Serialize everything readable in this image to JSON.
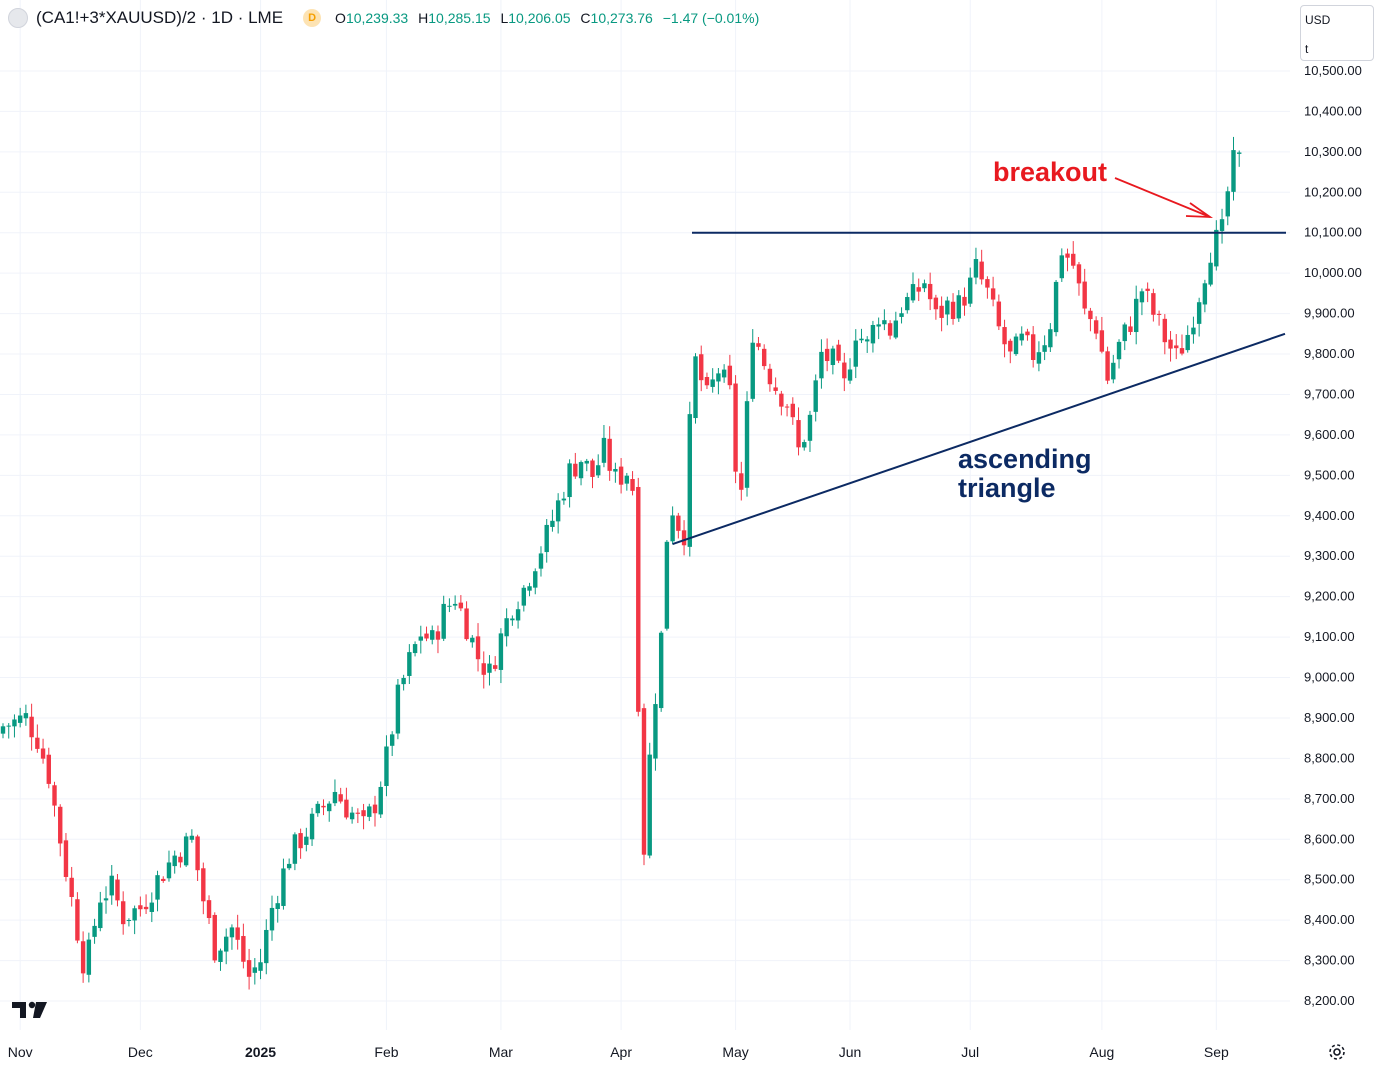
{
  "header": {
    "symbol": "(CA1!+3*XAUUSD)/2 · 1D · LME",
    "badge": "D",
    "open_label": "O",
    "open": "10,239.33",
    "high_label": "H",
    "high": "10,285.15",
    "low_label": "L",
    "low": "10,206.05",
    "close_label": "C",
    "close": "10,273.76",
    "change": "−1.47 (−0.01%)"
  },
  "currency": {
    "unit": "USD",
    "sub": "t"
  },
  "colors": {
    "up": "#089981",
    "down": "#f23645",
    "line": "#0c2a63",
    "annotation_red": "#e8191f",
    "annotation_navy": "#0c2a63",
    "grid": "#f0f3fa"
  },
  "icons": {
    "logo": "tradingview-logo-icon",
    "settings": "gear-icon"
  },
  "chart_data": {
    "type": "candlestick",
    "title": "(CA1!+3*XAUUSD)/2 · 1D · LME",
    "y_unit": "USD/t",
    "ylim": [
      8150,
      10560
    ],
    "y_ticks": [
      8200,
      8300,
      8400,
      8500,
      8600,
      8700,
      8800,
      8900,
      9000,
      9100,
      9200,
      9300,
      9400,
      9500,
      9600,
      9700,
      9800,
      9900,
      10000,
      10100,
      10200,
      10300,
      10400,
      10500
    ],
    "y_tick_labels": [
      "8,200.00",
      "8,300.00",
      "8,400.00",
      "8,500.00",
      "8,600.00",
      "8,700.00",
      "8,800.00",
      "8,900.00",
      "9,000.00",
      "9,100.00",
      "9,200.00",
      "9,300.00",
      "9,400.00",
      "9,500.00",
      "9,600.00",
      "9,700.00",
      "9,800.00",
      "9,900.00",
      "10,000.00",
      "10,100.00",
      "10,200.00",
      "10,300.00",
      "10,400.00",
      "10,500.00"
    ],
    "x_range": [
      0,
      224
    ],
    "x_ticks": [
      {
        "label": "Nov",
        "index": 3,
        "bold": false
      },
      {
        "label": "Dec",
        "index": 24,
        "bold": false
      },
      {
        "label": "2025",
        "index": 45,
        "bold": true
      },
      {
        "label": "Feb",
        "index": 67,
        "bold": false
      },
      {
        "label": "Mar",
        "index": 87,
        "bold": false
      },
      {
        "label": "Apr",
        "index": 108,
        "bold": false
      },
      {
        "label": "May",
        "index": 128,
        "bold": false
      },
      {
        "label": "Jun",
        "index": 148,
        "bold": false
      },
      {
        "label": "Jul",
        "index": 169,
        "bold": false
      },
      {
        "label": "Aug",
        "index": 192,
        "bold": false
      },
      {
        "label": "Sep",
        "index": 212,
        "bold": false
      }
    ],
    "series": [
      {
        "name": "(CA1!+3*XAUUSD)/2",
        "close_path": [
          [
            0,
            8880
          ],
          [
            4,
            8900
          ],
          [
            6,
            8850
          ],
          [
            8,
            8760
          ],
          [
            10,
            8600
          ],
          [
            12,
            8450
          ],
          [
            14,
            8300
          ],
          [
            15,
            8320
          ],
          [
            17,
            8460
          ],
          [
            19,
            8480
          ],
          [
            21,
            8410
          ],
          [
            24,
            8430
          ],
          [
            27,
            8500
          ],
          [
            30,
            8560
          ],
          [
            33,
            8600
          ],
          [
            35,
            8450
          ],
          [
            37,
            8330
          ],
          [
            40,
            8380
          ],
          [
            43,
            8260
          ],
          [
            45,
            8300
          ],
          [
            47,
            8430
          ],
          [
            50,
            8560
          ],
          [
            52,
            8600
          ],
          [
            55,
            8660
          ],
          [
            58,
            8720
          ],
          [
            60,
            8680
          ],
          [
            63,
            8630
          ],
          [
            65,
            8690
          ],
          [
            67,
            8800
          ],
          [
            69,
            8950
          ],
          [
            71,
            9040
          ],
          [
            73,
            9110
          ],
          [
            75,
            9090
          ],
          [
            77,
            9160
          ],
          [
            79,
            9200
          ],
          [
            81,
            9130
          ],
          [
            83,
            9050
          ],
          [
            85,
            9010
          ],
          [
            87,
            9100
          ],
          [
            89,
            9180
          ],
          [
            91,
            9220
          ],
          [
            93,
            9290
          ],
          [
            95,
            9350
          ],
          [
            97,
            9430
          ],
          [
            99,
            9510
          ],
          [
            101,
            9540
          ],
          [
            103,
            9500
          ],
          [
            105,
            9560
          ],
          [
            107,
            9490
          ],
          [
            109,
            9510
          ],
          [
            110,
            9470
          ],
          [
            111,
            8950
          ],
          [
            112,
            8580
          ],
          [
            113,
            8800
          ],
          [
            114,
            8960
          ],
          [
            115,
            9100
          ],
          [
            116,
            9350
          ],
          [
            117,
            9420
          ],
          [
            118,
            9380
          ],
          [
            119,
            9360
          ],
          [
            120,
            9620
          ],
          [
            121,
            9780
          ],
          [
            123,
            9690
          ],
          [
            125,
            9760
          ],
          [
            127,
            9700
          ],
          [
            128,
            9520
          ],
          [
            129,
            9460
          ],
          [
            131,
            9860
          ],
          [
            133,
            9780
          ],
          [
            135,
            9720
          ],
          [
            137,
            9680
          ],
          [
            139,
            9560
          ],
          [
            141,
            9640
          ],
          [
            143,
            9800
          ],
          [
            145,
            9780
          ],
          [
            147,
            9720
          ],
          [
            149,
            9860
          ],
          [
            151,
            9820
          ],
          [
            153,
            9900
          ],
          [
            155,
            9860
          ],
          [
            157,
            9920
          ],
          [
            159,
            9940
          ],
          [
            161,
            9980
          ],
          [
            163,
            9890
          ],
          [
            165,
            9920
          ],
          [
            167,
            9920
          ],
          [
            169,
            9970
          ],
          [
            170,
            10010
          ],
          [
            172,
            9950
          ],
          [
            174,
            9860
          ],
          [
            176,
            9790
          ],
          [
            178,
            9830
          ],
          [
            180,
            9800
          ],
          [
            182,
            9840
          ],
          [
            183,
            9880
          ],
          [
            185,
            10060
          ],
          [
            187,
            10020
          ],
          [
            189,
            9900
          ],
          [
            191,
            9870
          ],
          [
            193,
            9740
          ],
          [
            195,
            9820
          ],
          [
            197,
            9880
          ],
          [
            199,
            9960
          ],
          [
            201,
            9900
          ],
          [
            203,
            9840
          ],
          [
            205,
            9790
          ],
          [
            207,
            9850
          ],
          [
            209,
            9950
          ],
          [
            211,
            10060
          ],
          [
            213,
            10100
          ],
          [
            214,
            10200
          ],
          [
            215,
            10270
          ],
          [
            216,
            10274
          ]
        ]
      }
    ],
    "annotations": [
      {
        "text": "breakout",
        "color": "#e8191f"
      },
      {
        "text_lines": [
          "ascending",
          "triangle"
        ],
        "color": "#0c2a63"
      }
    ],
    "resistance_level": 10100,
    "trendline": {
      "start_index": 117,
      "start_value": 9330,
      "end_index": 224,
      "end_value": 9850
    }
  }
}
